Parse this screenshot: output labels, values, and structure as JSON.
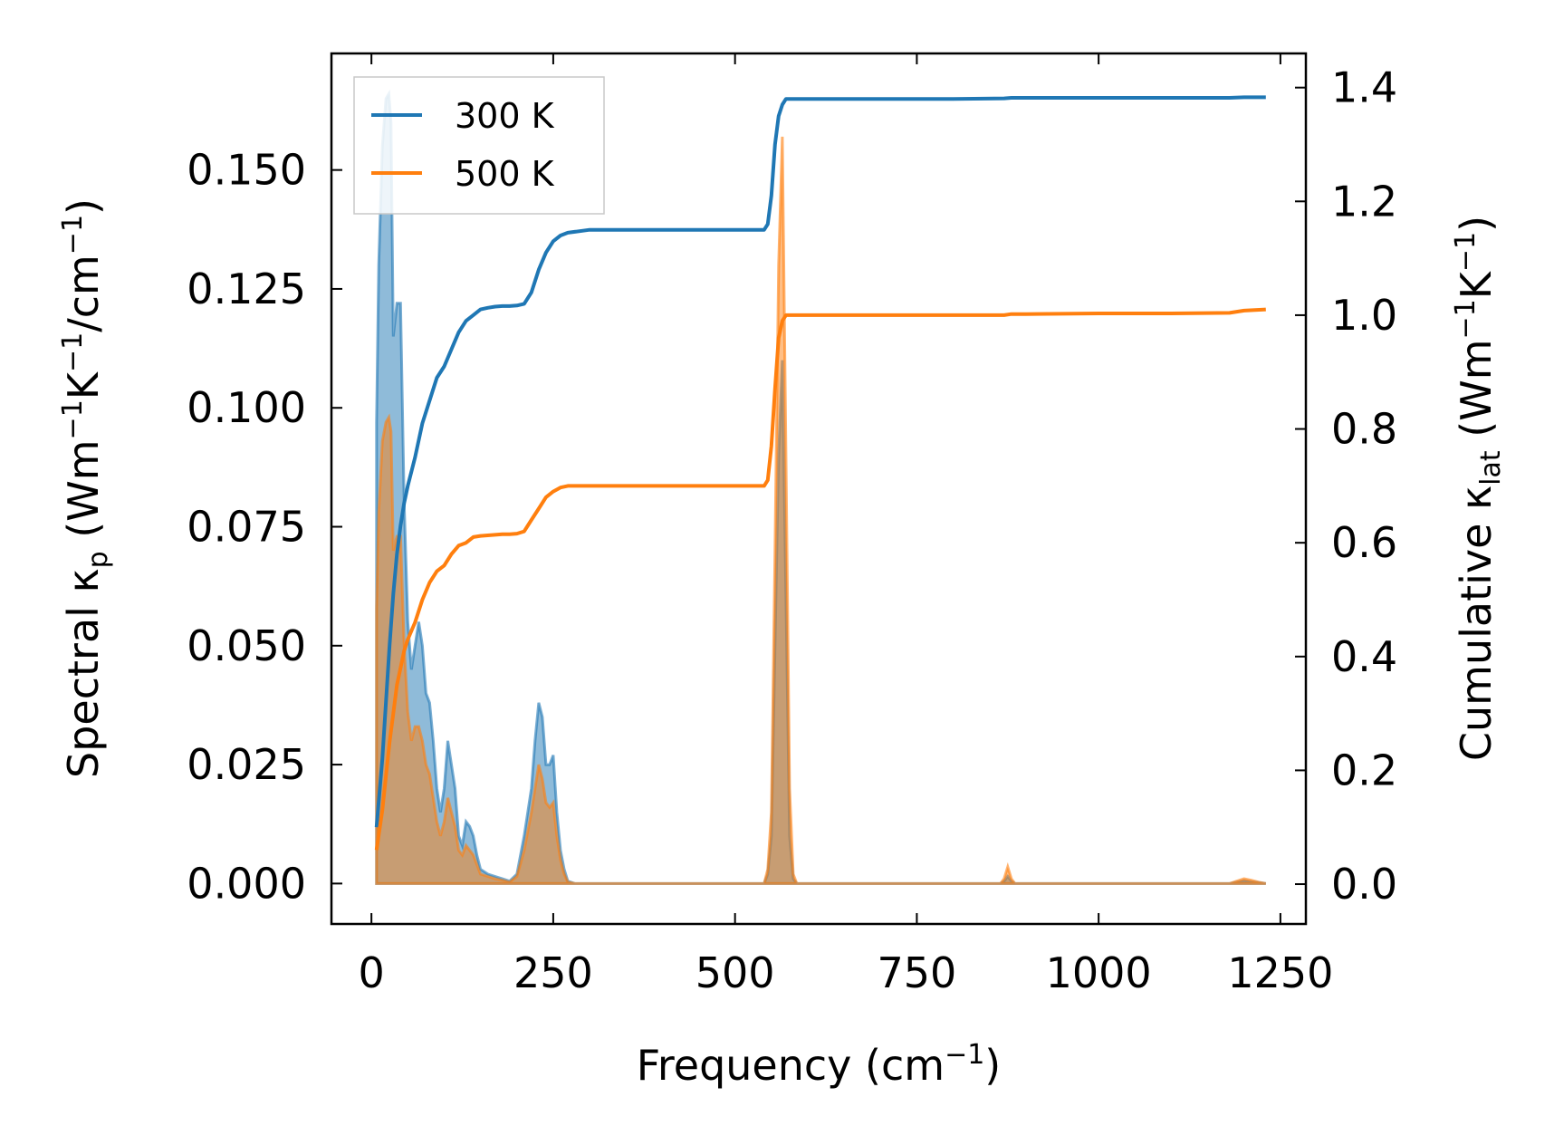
{
  "chart_data": {
    "type": "line",
    "title": "",
    "xlabel": {
      "base": "Frequency (cm",
      "sup": "−1",
      "tail": ")"
    },
    "ylabel_left": {
      "pre": "Spectral κ",
      "sub": "p",
      "mid": " (Wm",
      "sup1": "−1",
      "k": "K",
      "sup2": "−1",
      "tail": "/cm",
      "sup3": "−1",
      "end": ")"
    },
    "ylabel_right": {
      "pre": "Cumulative κ",
      "sub": "lat",
      "mid": " (Wm",
      "sup1": "−1",
      "k": "K",
      "sup2": "−1",
      "end": ")"
    },
    "xlim": [
      -55,
      1285
    ],
    "ylim_left": [
      -0.0085,
      0.1745
    ],
    "ylim_right": [
      -0.07,
      1.46
    ],
    "xticks": [
      0,
      250,
      500,
      750,
      1000,
      1250
    ],
    "xtick_labels": [
      "0",
      "250",
      "500",
      "750",
      "1000",
      "1250"
    ],
    "yticks_left": [
      0,
      0.025,
      0.05,
      0.075,
      0.1,
      0.125,
      0.15
    ],
    "ytick_labels_left": [
      "0.000",
      "0.025",
      "0.050",
      "0.075",
      "0.100",
      "0.125",
      "0.150"
    ],
    "yticks_right": [
      0,
      0.2,
      0.4,
      0.6,
      0.8,
      1.0,
      1.2,
      1.4
    ],
    "ytick_labels_right": [
      "0.0",
      "0.2",
      "0.4",
      "0.6",
      "0.8",
      "1.0",
      "1.2",
      "1.4"
    ],
    "legend": {
      "position": "upper-left",
      "entries": [
        "300 K",
        "500 K"
      ]
    },
    "colors": {
      "300 K": "#1f77b4",
      "500 K": "#ff7f0e"
    },
    "spectral_series": [
      {
        "name": "300 K",
        "axis": "left",
        "x": [
          7,
          10,
          15,
          20,
          24,
          27,
          30,
          35,
          40,
          45,
          50,
          55,
          60,
          65,
          70,
          75,
          80,
          85,
          90,
          95,
          100,
          105,
          110,
          115,
          120,
          125,
          130,
          135,
          140,
          145,
          150,
          160,
          170,
          180,
          190,
          200,
          210,
          220,
          225,
          230,
          235,
          240,
          245,
          250,
          255,
          260,
          265,
          270,
          280,
          300,
          400,
          500,
          540,
          545,
          550,
          555,
          560,
          565,
          570,
          575,
          580,
          585,
          600,
          700,
          865,
          870,
          875,
          880,
          885,
          900,
          1000,
          1100,
          1180,
          1190,
          1200,
          1210,
          1220,
          1230
        ],
        "y": [
          0.097,
          0.13,
          0.155,
          0.165,
          0.166,
          0.16,
          0.115,
          0.122,
          0.122,
          0.08,
          0.055,
          0.045,
          0.05,
          0.055,
          0.05,
          0.04,
          0.038,
          0.03,
          0.02,
          0.015,
          0.02,
          0.03,
          0.025,
          0.02,
          0.01,
          0.008,
          0.013,
          0.012,
          0.01,
          0.006,
          0.003,
          0.002,
          0.0015,
          0.001,
          0.0005,
          0.002,
          0.01,
          0.02,
          0.03,
          0.038,
          0.035,
          0.025,
          0.025,
          0.027,
          0.015,
          0.007,
          0.003,
          0.0005,
          0.0,
          0.0,
          0.0,
          0.0,
          0.0,
          0.002,
          0.01,
          0.05,
          0.09,
          0.11,
          0.06,
          0.01,
          0.001,
          0.0,
          0.0,
          0.0,
          0.0,
          0.0005,
          0.0015,
          0.0005,
          0.0,
          0.0,
          0.0,
          0.0,
          0.0,
          0.0003,
          0.0006,
          0.0004,
          0.0002,
          0.0
        ]
      },
      {
        "name": "500 K",
        "axis": "left",
        "x": [
          7,
          10,
          15,
          20,
          24,
          27,
          30,
          35,
          40,
          45,
          50,
          55,
          60,
          65,
          70,
          75,
          80,
          85,
          90,
          95,
          100,
          105,
          110,
          115,
          120,
          125,
          130,
          135,
          140,
          145,
          150,
          160,
          170,
          180,
          190,
          200,
          210,
          220,
          225,
          230,
          235,
          240,
          245,
          250,
          255,
          260,
          265,
          270,
          280,
          300,
          400,
          500,
          540,
          545,
          550,
          555,
          560,
          565,
          570,
          575,
          580,
          585,
          600,
          700,
          865,
          870,
          875,
          880,
          885,
          900,
          1000,
          1100,
          1180,
          1190,
          1200,
          1210,
          1220,
          1230
        ],
        "y": [
          0.058,
          0.078,
          0.093,
          0.097,
          0.098,
          0.095,
          0.07,
          0.073,
          0.073,
          0.05,
          0.036,
          0.03,
          0.033,
          0.033,
          0.03,
          0.025,
          0.023,
          0.018,
          0.013,
          0.01,
          0.013,
          0.018,
          0.015,
          0.012,
          0.007,
          0.006,
          0.008,
          0.007,
          0.006,
          0.004,
          0.002,
          0.0015,
          0.001,
          0.0007,
          0.0003,
          0.0015,
          0.007,
          0.015,
          0.02,
          0.025,
          0.022,
          0.017,
          0.016,
          0.017,
          0.01,
          0.005,
          0.002,
          0.0003,
          0.0,
          0.0,
          0.0,
          0.0,
          0.0,
          0.003,
          0.015,
          0.07,
          0.13,
          0.157,
          0.09,
          0.02,
          0.002,
          0.0,
          0.0,
          0.0,
          0.0,
          0.001,
          0.0035,
          0.001,
          0.0,
          0.0,
          0.0,
          0.0,
          0.0,
          0.0005,
          0.001,
          0.0007,
          0.0003,
          0.0
        ]
      }
    ],
    "cumulative_series": [
      {
        "name": "300 K",
        "axis": "right",
        "x": [
          7,
          15,
          20,
          25,
          30,
          35,
          40,
          45,
          50,
          60,
          70,
          80,
          90,
          100,
          110,
          120,
          130,
          140,
          150,
          160,
          170,
          180,
          190,
          200,
          210,
          220,
          230,
          240,
          250,
          260,
          270,
          300,
          400,
          500,
          540,
          545,
          550,
          555,
          560,
          565,
          570,
          575,
          600,
          700,
          800,
          870,
          880,
          900,
          1000,
          1100,
          1180,
          1200,
          1230
        ],
        "y": [
          0.1,
          0.22,
          0.32,
          0.42,
          0.51,
          0.58,
          0.63,
          0.67,
          0.7,
          0.75,
          0.81,
          0.85,
          0.89,
          0.91,
          0.94,
          0.97,
          0.99,
          1.0,
          1.01,
          1.013,
          1.015,
          1.016,
          1.016,
          1.017,
          1.02,
          1.04,
          1.08,
          1.11,
          1.13,
          1.14,
          1.145,
          1.15,
          1.15,
          1.15,
          1.15,
          1.16,
          1.21,
          1.3,
          1.35,
          1.37,
          1.38,
          1.38,
          1.38,
          1.38,
          1.38,
          1.381,
          1.382,
          1.382,
          1.382,
          1.382,
          1.382,
          1.383,
          1.383
        ]
      },
      {
        "name": "500 K",
        "axis": "right",
        "x": [
          7,
          15,
          20,
          25,
          30,
          35,
          40,
          45,
          50,
          60,
          70,
          80,
          90,
          100,
          110,
          120,
          130,
          140,
          150,
          160,
          170,
          180,
          190,
          200,
          210,
          220,
          230,
          240,
          250,
          260,
          270,
          300,
          400,
          500,
          540,
          545,
          550,
          555,
          560,
          565,
          570,
          575,
          600,
          700,
          800,
          870,
          880,
          900,
          1000,
          1100,
          1180,
          1200,
          1230
        ],
        "y": [
          0.06,
          0.13,
          0.19,
          0.25,
          0.3,
          0.35,
          0.38,
          0.41,
          0.43,
          0.46,
          0.5,
          0.53,
          0.55,
          0.56,
          0.58,
          0.595,
          0.6,
          0.61,
          0.612,
          0.613,
          0.614,
          0.615,
          0.615,
          0.616,
          0.62,
          0.64,
          0.66,
          0.68,
          0.69,
          0.697,
          0.7,
          0.7,
          0.7,
          0.7,
          0.7,
          0.71,
          0.77,
          0.87,
          0.96,
          0.99,
          1.0,
          1.0,
          1.0,
          1.0,
          1.0,
          1.0,
          1.002,
          1.002,
          1.003,
          1.003,
          1.004,
          1.008,
          1.01
        ]
      }
    ]
  }
}
